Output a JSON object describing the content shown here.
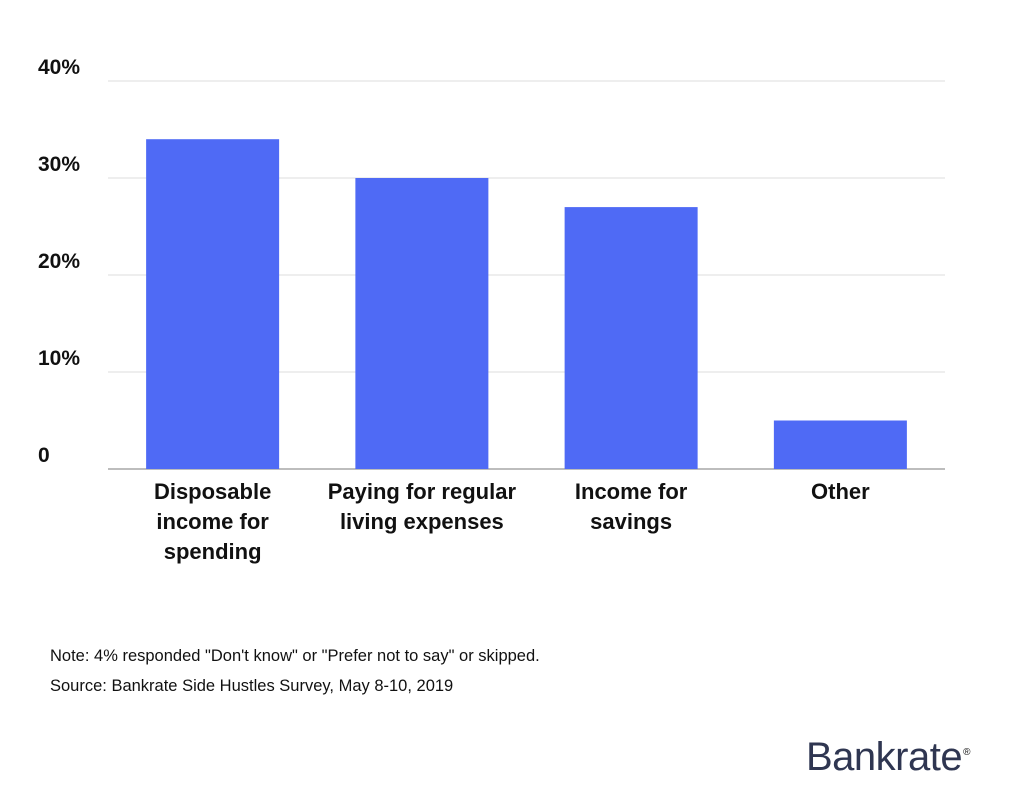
{
  "chart_data": {
    "type": "bar",
    "categories": [
      [
        "Disposable",
        "income for",
        "spending"
      ],
      [
        "Paying for regular",
        "living expenses"
      ],
      [
        "Income for",
        "savings"
      ],
      [
        "Other"
      ]
    ],
    "values": [
      34,
      30,
      27,
      5
    ],
    "ylim": [
      0,
      40
    ],
    "yticks": [
      0,
      10,
      20,
      30,
      40
    ],
    "ytick_labels": [
      "0",
      "10%",
      "20%",
      "30%",
      "40%"
    ],
    "grid": true,
    "bar_color": "#4f6af5",
    "title": "",
    "xlabel": "",
    "ylabel": ""
  },
  "footnotes": {
    "note": "Note: 4% responded \"Don't know\" or \"Prefer not to say\" or skipped.",
    "source": "Source: Bankrate Side Hustles Survey, May 8-10, 2019"
  },
  "logo": {
    "text": "Bankrate",
    "mark": "®",
    "color": "#2f3651"
  }
}
